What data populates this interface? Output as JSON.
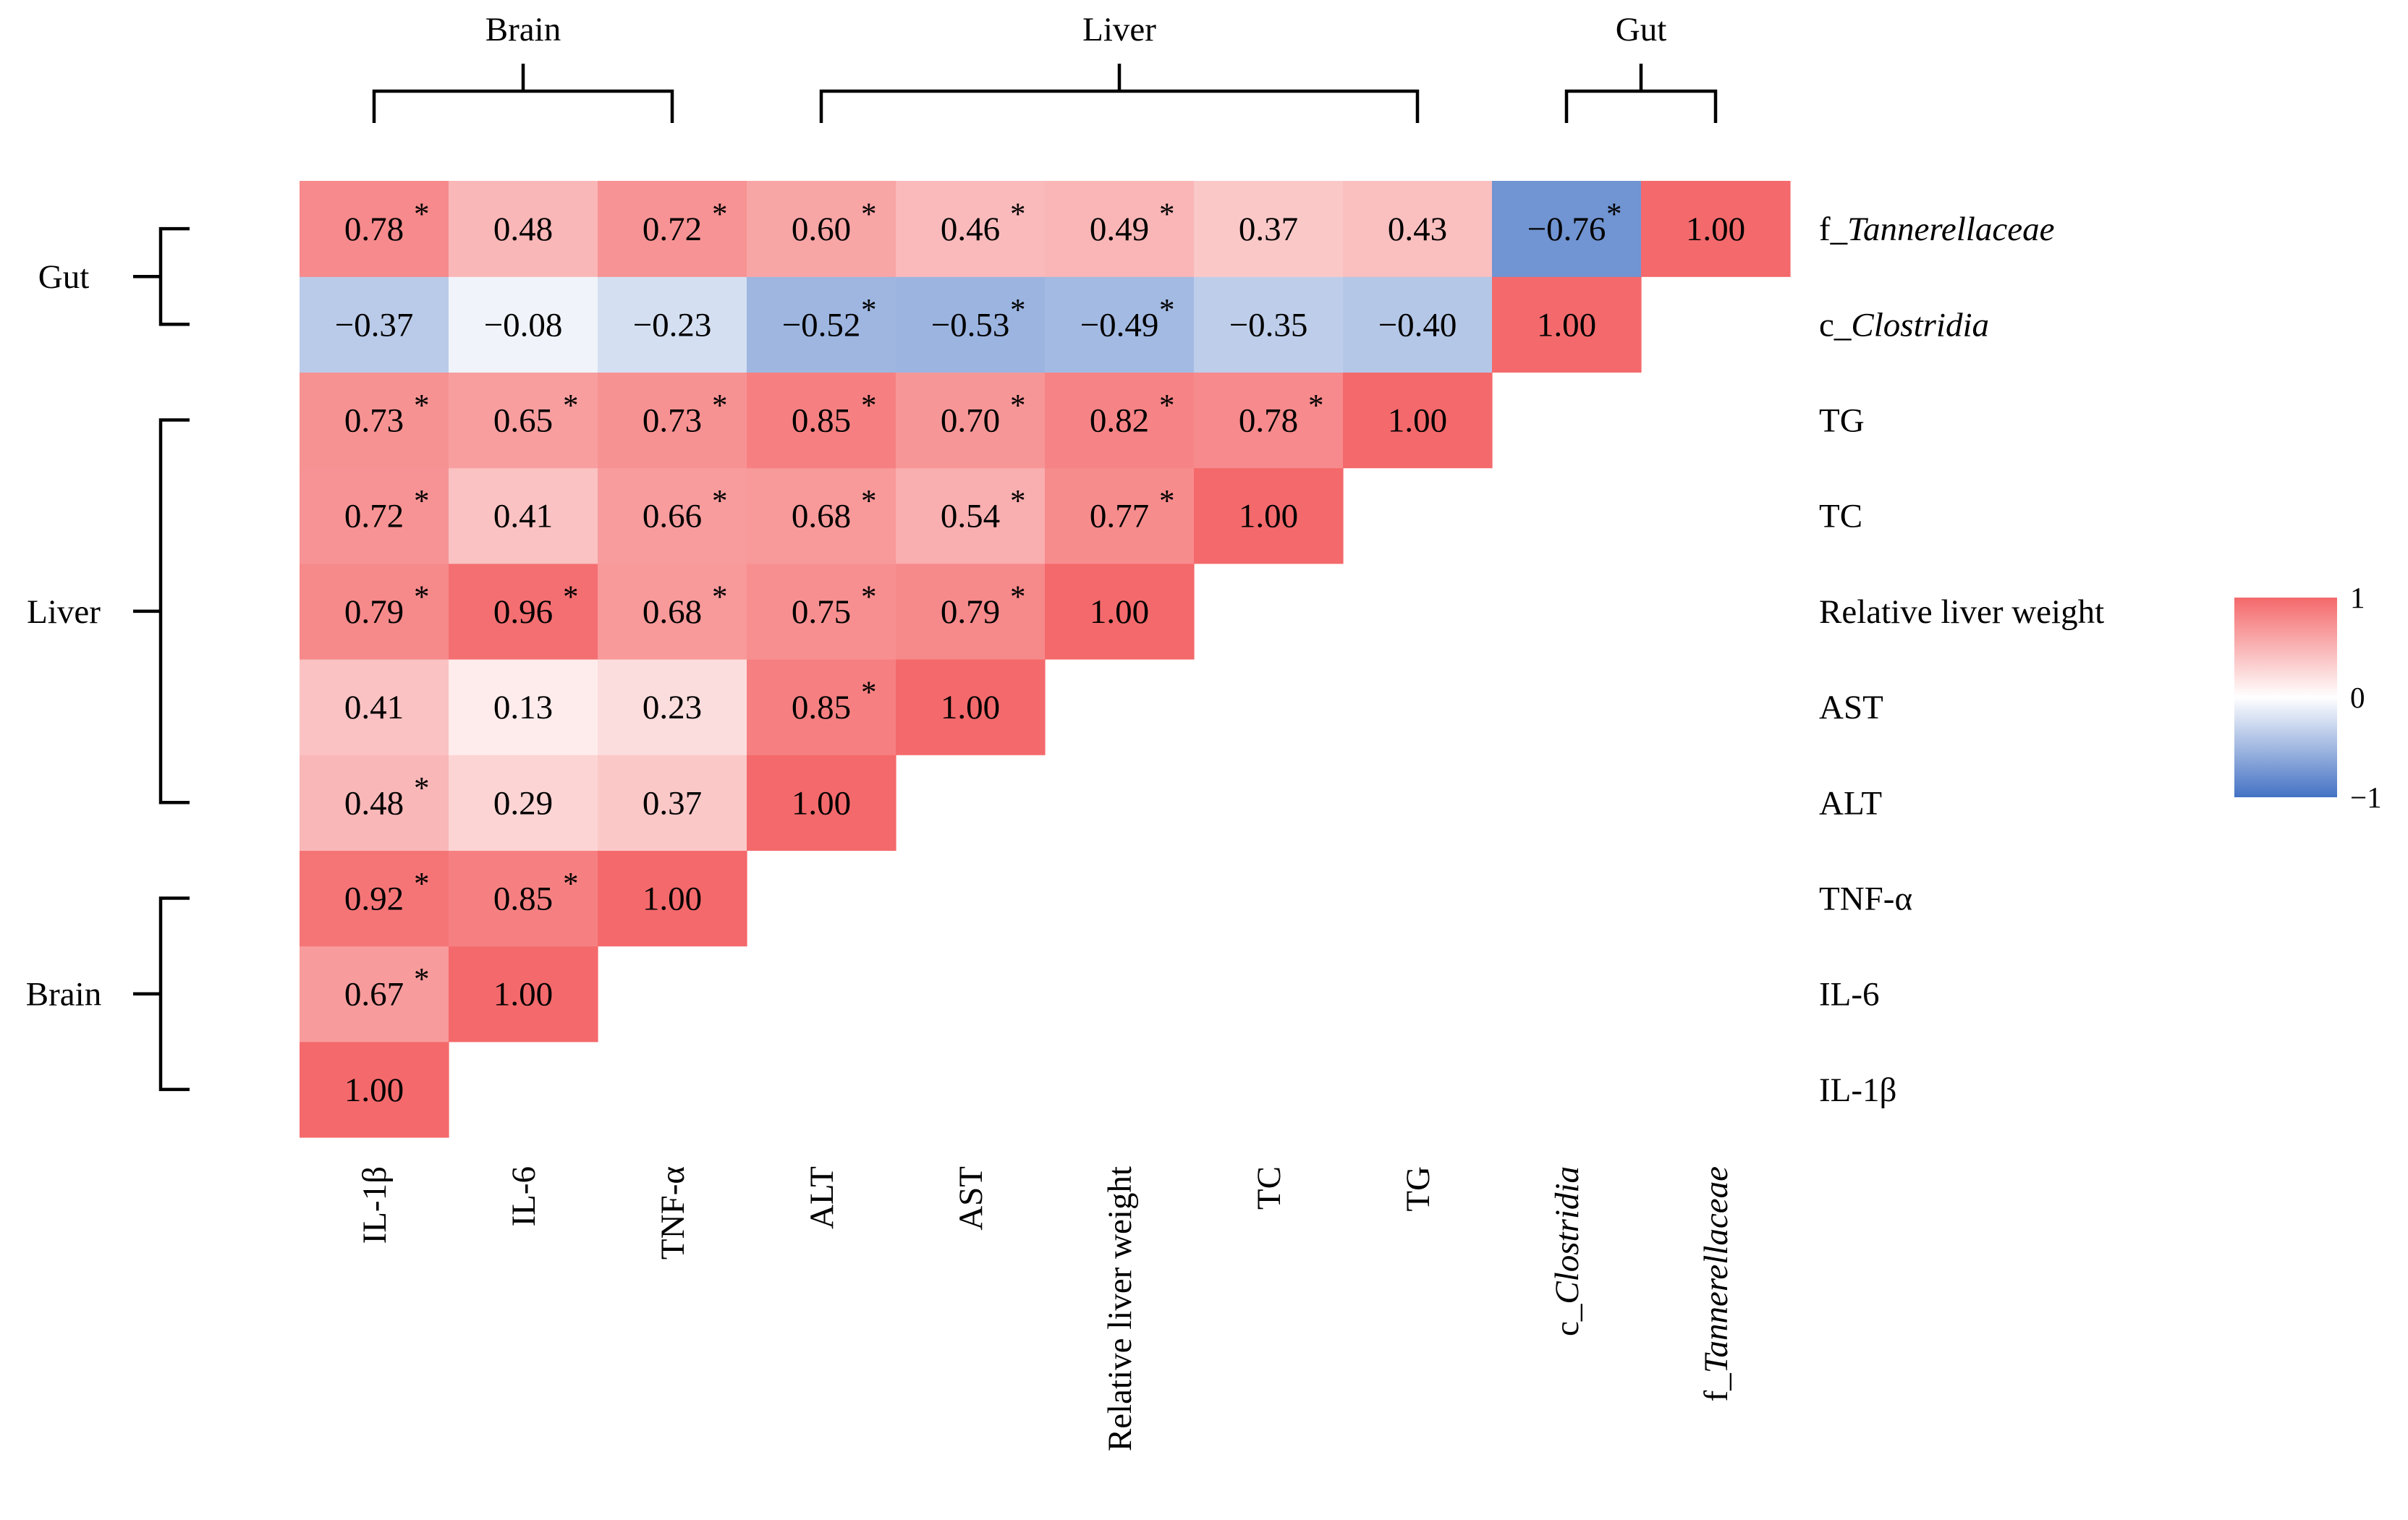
{
  "chart_data": {
    "type": "heatmap",
    "variables": [
      {
        "prefix": "",
        "name": "IL-1β",
        "italic": false,
        "group": "Brain"
      },
      {
        "prefix": "",
        "name": "IL-6",
        "italic": false,
        "group": "Brain"
      },
      {
        "prefix": "",
        "name": "TNF-α",
        "italic": false,
        "group": "Brain"
      },
      {
        "prefix": "",
        "name": "ALT",
        "italic": false,
        "group": "Liver"
      },
      {
        "prefix": "",
        "name": "AST",
        "italic": false,
        "group": "Liver"
      },
      {
        "prefix": "",
        "name": "Relative liver weight",
        "italic": false,
        "group": "Liver"
      },
      {
        "prefix": "",
        "name": "TC",
        "italic": false,
        "group": "Liver"
      },
      {
        "prefix": "",
        "name": "TG",
        "italic": false,
        "group": "Liver"
      },
      {
        "prefix": "c_",
        "name": "Clostridia",
        "italic": true,
        "group": "Gut"
      },
      {
        "prefix": "f_",
        "name": "Tannerellaceae",
        "italic": true,
        "group": "Gut"
      }
    ],
    "col_variables": [
      {
        "prefix": "",
        "name": "IL-1β",
        "italic": false
      },
      {
        "prefix": "",
        "name": "IL-6",
        "italic": false
      },
      {
        "prefix": "",
        "name": "TNF-α",
        "italic": false
      },
      {
        "prefix": "",
        "name": "ALT",
        "italic": false
      },
      {
        "prefix": "",
        "name": "AST",
        "italic": false
      },
      {
        "prefix": "",
        "name": "Relative liver weight",
        "italic": false
      },
      {
        "prefix": "",
        "name": "TC",
        "italic": false
      },
      {
        "prefix": "",
        "name": "TG",
        "italic": false
      },
      {
        "prefix": "c_",
        "name": "Clostridia",
        "italic": true
      },
      {
        "prefix": "f_",
        "name": "Tannerellaceae",
        "italic": true
      }
    ],
    "row_variables": [
      {
        "prefix": "f_",
        "name": "Tannerellaceae",
        "italic": true
      },
      {
        "prefix": "c_",
        "name": "Clostridia",
        "italic": true
      },
      {
        "prefix": "",
        "name": "TG",
        "italic": false
      },
      {
        "prefix": "",
        "name": "TC",
        "italic": false
      },
      {
        "prefix": "",
        "name": "Relative liver weight",
        "italic": false
      },
      {
        "prefix": "",
        "name": "AST",
        "italic": false
      },
      {
        "prefix": "",
        "name": "ALT",
        "italic": false
      },
      {
        "prefix": "",
        "name": "TNF-α",
        "italic": false
      },
      {
        "prefix": "",
        "name": "IL-6",
        "italic": false
      },
      {
        "prefix": "",
        "name": "IL-1β",
        "italic": false
      }
    ],
    "matrix": [
      [
        1.0,
        null,
        null,
        null,
        null,
        null,
        null,
        null,
        null,
        null
      ],
      [
        0.67,
        1.0,
        null,
        null,
        null,
        null,
        null,
        null,
        null,
        null
      ],
      [
        0.92,
        0.85,
        1.0,
        null,
        null,
        null,
        null,
        null,
        null,
        null
      ],
      [
        0.48,
        0.29,
        0.37,
        1.0,
        null,
        null,
        null,
        null,
        null,
        null
      ],
      [
        0.41,
        0.13,
        0.23,
        0.85,
        1.0,
        null,
        null,
        null,
        null,
        null
      ],
      [
        0.79,
        0.96,
        0.68,
        0.75,
        0.79,
        1.0,
        null,
        null,
        null,
        null
      ],
      [
        0.72,
        0.41,
        0.66,
        0.68,
        0.54,
        0.77,
        1.0,
        null,
        null,
        null
      ],
      [
        0.73,
        0.65,
        0.73,
        0.85,
        0.7,
        0.82,
        0.78,
        1.0,
        null,
        null
      ],
      [
        -0.37,
        -0.08,
        -0.23,
        -0.52,
        -0.53,
        -0.49,
        -0.35,
        -0.4,
        1.0,
        null
      ],
      [
        0.78,
        0.48,
        0.72,
        0.6,
        0.46,
        0.49,
        0.37,
        0.43,
        -0.76,
        1.0
      ]
    ],
    "significant": [
      [
        false,
        false,
        false,
        false,
        false,
        false,
        false,
        false,
        false,
        false
      ],
      [
        true,
        false,
        false,
        false,
        false,
        false,
        false,
        false,
        false,
        false
      ],
      [
        true,
        true,
        false,
        false,
        false,
        false,
        false,
        false,
        false,
        false
      ],
      [
        true,
        false,
        false,
        false,
        false,
        false,
        false,
        false,
        false,
        false
      ],
      [
        false,
        false,
        false,
        true,
        false,
        false,
        false,
        false,
        false,
        false
      ],
      [
        true,
        true,
        true,
        true,
        true,
        false,
        false,
        false,
        false,
        false
      ],
      [
        true,
        false,
        true,
        true,
        true,
        true,
        false,
        false,
        false,
        false
      ],
      [
        true,
        true,
        true,
        true,
        true,
        true,
        true,
        false,
        false,
        false
      ],
      [
        false,
        false,
        false,
        true,
        true,
        true,
        false,
        false,
        false,
        false
      ],
      [
        true,
        false,
        true,
        true,
        true,
        true,
        false,
        false,
        true,
        false
      ]
    ],
    "significance_marker": "*",
    "value_labels": {
      "1.00": "1.00",
      "0.92": "0.92",
      "0.96": "0.96",
      "0.85": "0.85",
      "0.82": "0.82",
      "0.79": "0.79",
      "0.78": "0.78",
      "0.77": "0.77",
      "0.75": "0.75",
      "0.73": "0.73",
      "0.72": "0.72",
      "0.70": "0.70",
      "0.68": "0.68",
      "0.67": "0.67",
      "0.66": "0.66",
      "0.65": "0.65",
      "0.60": "0.60",
      "0.54": "0.54",
      "0.49": "0.49",
      "0.48": "0.48",
      "0.46": "0.46",
      "0.43": "0.43",
      "0.41": "0.41",
      "0.37": "0.37",
      "0.29": "0.29",
      "0.23": "0.23",
      "0.13": "0.13",
      "-0.08": "−0.08",
      "-0.23": "−0.23",
      "-0.35": "−0.35",
      "-0.37": "−0.37",
      "-0.40": "−0.40",
      "-0.49": "−0.49",
      "-0.52": "−0.52",
      "-0.53": "−0.53",
      "-0.76": "−0.76"
    },
    "groups": [
      {
        "name": "Brain",
        "members": [
          "IL-1β",
          "IL-6",
          "TNF-α"
        ]
      },
      {
        "name": "Liver",
        "members": [
          "ALT",
          "AST",
          "Relative liver weight",
          "TC",
          "TG"
        ]
      },
      {
        "name": "Gut",
        "members": [
          "Clostridia",
          "Tannerellaceae"
        ]
      }
    ],
    "group_labels": {
      "top": [
        "Brain",
        "Liver",
        "Gut"
      ],
      "left": [
        "Gut",
        "Liver",
        "Brain"
      ]
    },
    "colorscale": {
      "min": -1,
      "max": 1,
      "mid": 0,
      "low_color": "#4472c4",
      "mid_color": "#ffffff",
      "high_color": "#f4696b",
      "ticks": [
        {
          "value": 1,
          "label": "1"
        },
        {
          "value": 0,
          "label": "0"
        },
        {
          "value": -1,
          "label": "−1"
        }
      ]
    },
    "title": "",
    "xlabel": "",
    "ylabel": ""
  }
}
